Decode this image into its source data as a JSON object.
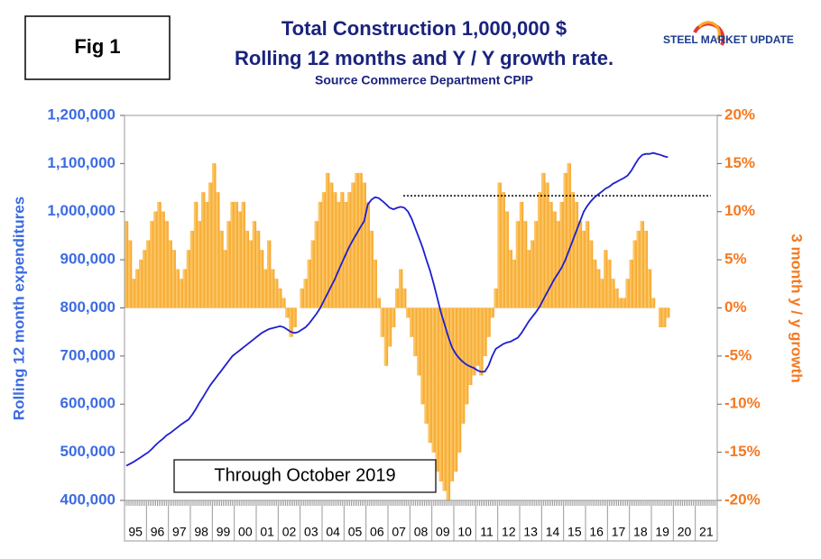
{
  "chart_data": {
    "type": "combo",
    "fig_label": "Fig 1",
    "title": "Total Construction 1,000,000 $",
    "subtitle": "Rolling 12 months and Y / Y growth rate.",
    "source": "Source Commerce Department CPIP",
    "logo": "STEEL MARKET UPDATE",
    "annotation": "Through October 2019",
    "y_label": "Rolling 12 month expenditures",
    "y2_label": "3 month y / y growth",
    "categories": [
      "95",
      "96",
      "97",
      "98",
      "99",
      "00",
      "01",
      "02",
      "03",
      "04",
      "05",
      "06",
      "07",
      "08",
      "09",
      "10",
      "11",
      "12",
      "13",
      "14",
      "15",
      "16",
      "17",
      "18",
      "19",
      "20",
      "21"
    ],
    "ylim": [
      400000,
      1200000
    ],
    "yticks": [
      {
        "value": 400000,
        "label": "400,000"
      },
      {
        "value": 500000,
        "label": "500,000"
      },
      {
        "value": 600000,
        "label": "600,000"
      },
      {
        "value": 700000,
        "label": "700,000"
      },
      {
        "value": 800000,
        "label": "800,000"
      },
      {
        "value": 900000,
        "label": "900,000"
      },
      {
        "value": 1000000,
        "label": "1,000,000"
      },
      {
        "value": 1100000,
        "label": "1,100,000"
      },
      {
        "value": 1200000,
        "label": "1,200,000"
      }
    ],
    "y2lim": [
      -20,
      20
    ],
    "y2ticks": [
      {
        "value": -20,
        "label": "-20%"
      },
      {
        "value": -15,
        "label": "-15%"
      },
      {
        "value": -10,
        "label": "-10%"
      },
      {
        "value": -5,
        "label": "-5%"
      },
      {
        "value": 0,
        "label": "0%"
      },
      {
        "value": 5,
        "label": "5%"
      },
      {
        "value": 10,
        "label": "10%"
      },
      {
        "value": 15,
        "label": "15%"
      },
      {
        "value": 20,
        "label": "20%"
      }
    ],
    "reference_line": {
      "value": 1033000,
      "color": "#000000"
    },
    "series": [
      {
        "type": "line",
        "axis": "y",
        "color": "#1f1fd0",
        "values": [
          [
            472000,
            476000,
            480000,
            485000,
            490000,
            495000
          ],
          [
            500000,
            507000,
            515000,
            522000,
            528000,
            535000
          ],
          [
            540000,
            546000,
            552000,
            558000,
            563000,
            568000
          ],
          [
            578000,
            590000,
            603000,
            615000,
            628000,
            640000
          ],
          [
            650000,
            660000,
            670000,
            680000,
            690000,
            700000
          ],
          [
            706000,
            712000,
            718000,
            724000,
            730000,
            736000
          ],
          [
            742000,
            748000,
            752000,
            756000,
            758000,
            760000
          ],
          [
            762000,
            760000,
            755000,
            750000,
            748000,
            750000
          ],
          [
            755000,
            760000,
            768000,
            778000,
            788000,
            800000
          ],
          [
            815000,
            830000,
            845000,
            860000,
            878000,
            895000
          ],
          [
            912000,
            928000,
            942000,
            955000,
            968000,
            980000
          ],
          [
            1015000,
            1025000,
            1030000,
            1028000,
            1022000,
            1015000
          ],
          [
            1008000,
            1005000,
            1008000,
            1010000,
            1008000,
            1000000
          ],
          [
            985000,
            965000,
            945000,
            925000,
            900000,
            878000
          ],
          [
            850000,
            820000,
            790000,
            765000,
            740000,
            718000
          ],
          [
            705000,
            695000,
            688000,
            682000,
            678000,
            675000
          ],
          [
            670000,
            667000,
            668000,
            680000,
            700000,
            715000
          ],
          [
            720000,
            725000,
            728000,
            730000,
            734000,
            738000
          ],
          [
            748000,
            760000,
            772000,
            782000,
            792000,
            803000
          ],
          [
            818000,
            832000,
            846000,
            860000,
            872000,
            884000
          ],
          [
            900000,
            920000,
            940000,
            960000,
            980000,
            1000000
          ],
          [
            1012000,
            1022000,
            1030000,
            1036000,
            1042000,
            1048000
          ],
          [
            1052000,
            1058000,
            1062000,
            1066000,
            1070000,
            1075000
          ],
          [
            1085000,
            1098000,
            1110000,
            1118000,
            1120000,
            1120000
          ],
          [
            1122000,
            1120000,
            1118000,
            1115000,
            1113000
          ],
          [],
          []
        ]
      },
      {
        "type": "bar",
        "axis": "y2",
        "color": "#f7a325",
        "values": [
          [
            9,
            7,
            3,
            4,
            5,
            6
          ],
          [
            7,
            9,
            10,
            11,
            10,
            9
          ],
          [
            7,
            6,
            4,
            3,
            4,
            6
          ],
          [
            8,
            11,
            9,
            12,
            11,
            13
          ],
          [
            15,
            12,
            8,
            6,
            9,
            11
          ],
          [
            11,
            10,
            11,
            8,
            7,
            9
          ],
          [
            8,
            6,
            4,
            7,
            4,
            3
          ],
          [
            2,
            1,
            -1,
            -3,
            -2,
            0
          ],
          [
            2,
            3,
            5,
            7,
            9,
            11
          ],
          [
            12,
            14,
            13,
            12,
            11,
            12
          ],
          [
            11,
            12,
            13,
            14,
            14,
            13
          ],
          [
            11,
            8,
            5,
            1,
            -3,
            -6
          ],
          [
            -4,
            -2,
            2,
            4,
            2,
            -1
          ],
          [
            -3,
            -5,
            -7,
            -10,
            -12,
            -14
          ],
          [
            -15,
            -17,
            -18,
            -19,
            -20,
            -18
          ],
          [
            -17,
            -15,
            -12,
            -10,
            -8,
            -7
          ],
          [
            -6,
            -7,
            -5,
            -3,
            -1,
            2
          ],
          [
            13,
            12,
            10,
            6,
            5,
            9
          ],
          [
            11,
            9,
            6,
            7,
            9,
            12
          ],
          [
            14,
            13,
            11,
            10,
            9,
            11
          ],
          [
            14,
            15,
            12,
            11,
            9,
            8
          ],
          [
            9,
            7,
            5,
            4,
            3,
            6
          ],
          [
            5,
            3,
            2,
            1,
            1,
            3
          ],
          [
            5,
            7,
            8,
            9,
            8,
            4
          ],
          [
            1,
            0,
            -2,
            -2,
            -1
          ],
          [],
          []
        ]
      }
    ]
  }
}
